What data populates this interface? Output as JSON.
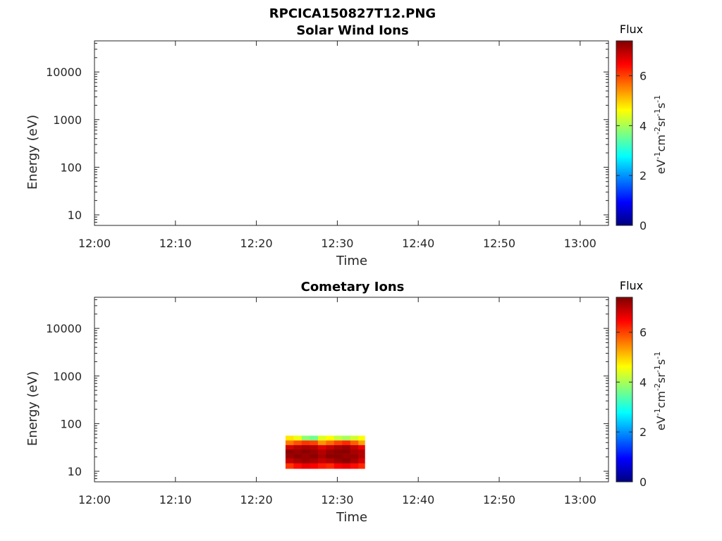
{
  "figure": {
    "title": "RPCICA150827T12.PNG"
  },
  "chart_data": [
    {
      "type": "heatmap",
      "title": "Solar Wind Ions",
      "xlabel": "Time",
      "ylabel": "Energy (eV)",
      "x_tick_labels": [
        "12:00",
        "12:10",
        "12:20",
        "12:30",
        "12:40",
        "12:50",
        "13:00"
      ],
      "x_ticks_minutes": [
        0,
        10,
        20,
        30,
        40,
        50,
        60
      ],
      "xlim_minutes": [
        0,
        63.5
      ],
      "y_scale": "log",
      "ylim": [
        6,
        45000
      ],
      "y_ticks": [
        10,
        100,
        1000,
        10000
      ],
      "y_tick_labels": [
        "10",
        "100",
        "1000",
        "10000"
      ],
      "colorbar": {
        "title": "Flux",
        "unit": {
          "base1": "eV",
          "sup1": "-1",
          "base2": "cm",
          "sup2": "-2",
          "base3": "sr",
          "sup3": "-1",
          "base4": "s",
          "sup4": "-1"
        },
        "range": [
          0,
          7.4
        ],
        "ticks": [
          0,
          2,
          4,
          6
        ],
        "tick_labels": [
          "0",
          "2",
          "4",
          "6"
        ],
        "colormap": [
          "#00007f",
          "#0000ff",
          "#007fff",
          "#00ffff",
          "#7fff7f",
          "#ffff00",
          "#ff7f00",
          "#ff0000",
          "#7f0000"
        ]
      },
      "data": []
    },
    {
      "type": "heatmap",
      "title": "Cometary Ions",
      "xlabel": "Time",
      "ylabel": "Energy (eV)",
      "x_tick_labels": [
        "12:00",
        "12:10",
        "12:20",
        "12:30",
        "12:40",
        "12:50",
        "13:00"
      ],
      "x_ticks_minutes": [
        0,
        10,
        20,
        30,
        40,
        50,
        60
      ],
      "xlim_minutes": [
        0,
        63.5
      ],
      "y_scale": "log",
      "ylim": [
        6,
        45000
      ],
      "y_ticks": [
        10,
        100,
        1000,
        10000
      ],
      "y_tick_labels": [
        "10",
        "100",
        "1000",
        "10000"
      ],
      "colorbar": {
        "title": "Flux",
        "unit": {
          "base1": "eV",
          "sup1": "-1",
          "base2": "cm",
          "sup2": "-2",
          "base3": "sr",
          "sup3": "-1",
          "base4": "s",
          "sup4": "-1"
        },
        "range": [
          0,
          7.4
        ],
        "ticks": [
          0,
          2,
          4,
          6
        ],
        "tick_labels": [
          "0",
          "2",
          "4",
          "6"
        ],
        "colormap": [
          "#00007f",
          "#0000ff",
          "#007fff",
          "#00ffff",
          "#7fff7f",
          "#ffff00",
          "#ff7f00",
          "#ff0000",
          "#7f0000"
        ]
      },
      "data": [
        {
          "energy_bins_eV": [
            13,
            17,
            21,
            26,
            32,
            40,
            50
          ]
        },
        {
          "time_bins_minutes": [
            23.6,
            24.6,
            25.6,
            26.6,
            27.6,
            28.6,
            29.6,
            30.6,
            31.6,
            32.6,
            33.4
          ]
        },
        {
          "flux": [
            [
              6.1,
              6.4,
              6.6,
              6.5,
              6.3,
              6.2,
              6.5,
              6.6,
              6.4,
              6.2
            ],
            [
              6.9,
              7.1,
              7.2,
              7.1,
              6.9,
              7.0,
              7.2,
              7.3,
              7.1,
              6.8
            ],
            [
              7.2,
              7.3,
              7.2,
              7.3,
              7.1,
              7.3,
              7.3,
              7.2,
              7.2,
              7.0
            ],
            [
              7.3,
              7.2,
              7.3,
              7.2,
              7.0,
              7.2,
              7.3,
              7.3,
              7.1,
              7.0
            ],
            [
              6.8,
              7.0,
              7.1,
              7.0,
              6.7,
              6.9,
              7.1,
              7.2,
              6.9,
              6.6
            ],
            [
              5.6,
              5.9,
              6.1,
              6.0,
              5.4,
              5.7,
              6.0,
              6.2,
              5.8,
              5.3
            ],
            [
              4.8,
              4.5,
              3.8,
              3.6,
              4.4,
              4.6,
              4.2,
              4.0,
              4.3,
              4.6
            ]
          ]
        }
      ]
    }
  ]
}
